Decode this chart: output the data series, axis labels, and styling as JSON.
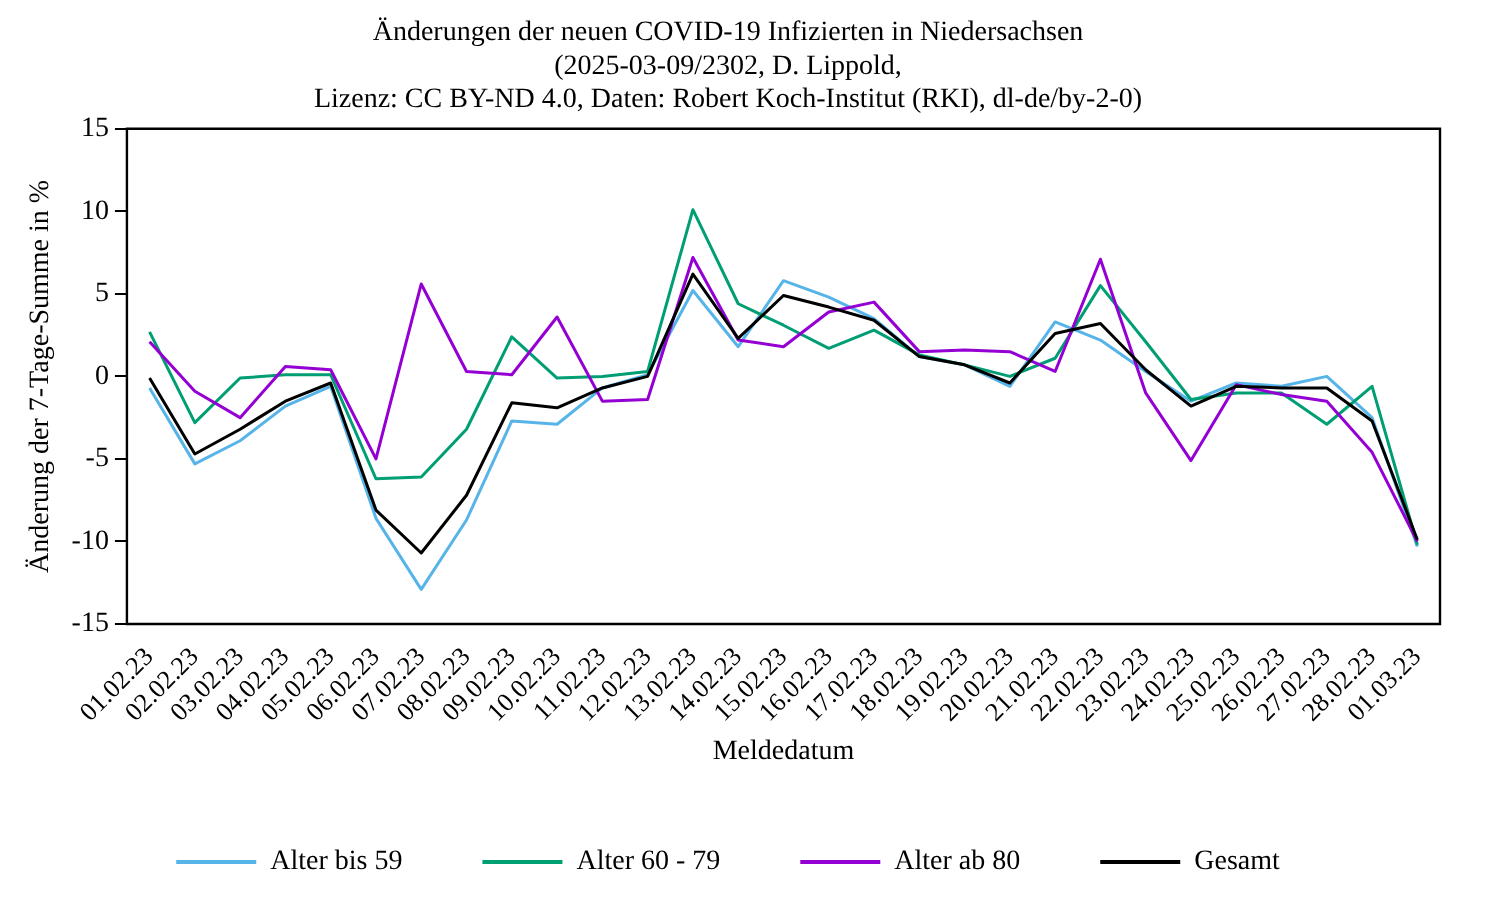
{
  "chart_data": {
    "type": "line",
    "title": "Änderungen der neuen COVID-19 Infizierten in Niedersachsen",
    "subtitle": "(2025-03-09/2302, D. Lippold,\nLizenz: CC BY-ND 4.0, Daten: Robert Koch-Institut (RKI), dl-de/by-2-0)",
    "xlabel": "Meldedatum",
    "ylabel": "Änderung der 7-Tage-Summe in %",
    "categories": [
      "01.02.23",
      "02.02.23",
      "03.02.23",
      "04.02.23",
      "05.02.23",
      "06.02.23",
      "07.02.23",
      "08.02.23",
      "09.02.23",
      "10.02.23",
      "11.02.23",
      "12.02.23",
      "13.02.23",
      "14.02.23",
      "15.02.23",
      "16.02.23",
      "17.02.23",
      "18.02.23",
      "19.02.23",
      "20.02.23",
      "21.02.23",
      "22.02.23",
      "23.02.23",
      "24.02.23",
      "25.02.23",
      "26.02.23",
      "27.02.23",
      "28.02.23",
      "01.03.23"
    ],
    "series": [
      {
        "name": "Alter bis 59",
        "color": "#56b4e9",
        "values": [
          -0.7,
          -5.3,
          -3.9,
          -1.8,
          -0.6,
          -8.6,
          -12.9,
          -8.7,
          -2.7,
          -2.9,
          -0.7,
          0.1,
          5.2,
          1.8,
          5.8,
          4.8,
          3.5,
          1.2,
          0.7,
          -0.6,
          3.3,
          2.2,
          0.3,
          -1.5,
          -0.4,
          -0.6,
          0,
          -2.5,
          -10.3
        ]
      },
      {
        "name": "Alter 60 - 79",
        "color": "#009e73",
        "values": [
          2.7,
          -2.8,
          -0.1,
          0.1,
          0.1,
          -6.2,
          -6.1,
          -3.2,
          2.4,
          -0.1,
          0,
          0.3,
          10.1,
          4.4,
          3.1,
          1.7,
          2.8,
          1.3,
          0.7,
          0,
          1.1,
          5.5,
          2.1,
          -1.4,
          -1.0,
          -1.0,
          -2.9,
          -0.6,
          -10.2
        ]
      },
      {
        "name": "Alter ab 80",
        "color": "#9400d3",
        "values": [
          2.1,
          -0.9,
          -2.5,
          0.6,
          0.4,
          -5.0,
          5.6,
          0.3,
          0.1,
          3.6,
          -1.5,
          -1.4,
          7.2,
          2.2,
          1.8,
          3.9,
          4.5,
          1.5,
          1.6,
          1.5,
          0.3,
          7.1,
          -1.0,
          -5.1,
          -0.5,
          -1.1,
          -1.5,
          -4.6,
          -10.0
        ]
      },
      {
        "name": "Gesamt",
        "color": "#000000",
        "values": [
          -0.1,
          -4.7,
          -3.2,
          -1.5,
          -0.4,
          -8.1,
          -10.7,
          -7.2,
          -1.6,
          -1.9,
          -0.7,
          0,
          6.2,
          2.3,
          4.9,
          4.2,
          3.4,
          1.2,
          0.7,
          -0.4,
          2.6,
          3.2,
          0.4,
          -1.8,
          -0.6,
          -0.7,
          -0.7,
          -2.7,
          -9.9
        ]
      }
    ],
    "ylim": [
      -15,
      15
    ],
    "yticks": [
      -15,
      -10,
      -5,
      0,
      5,
      10,
      15
    ],
    "grid": false,
    "legend": "bottom",
    "marker": "none",
    "line_style": "solid"
  }
}
